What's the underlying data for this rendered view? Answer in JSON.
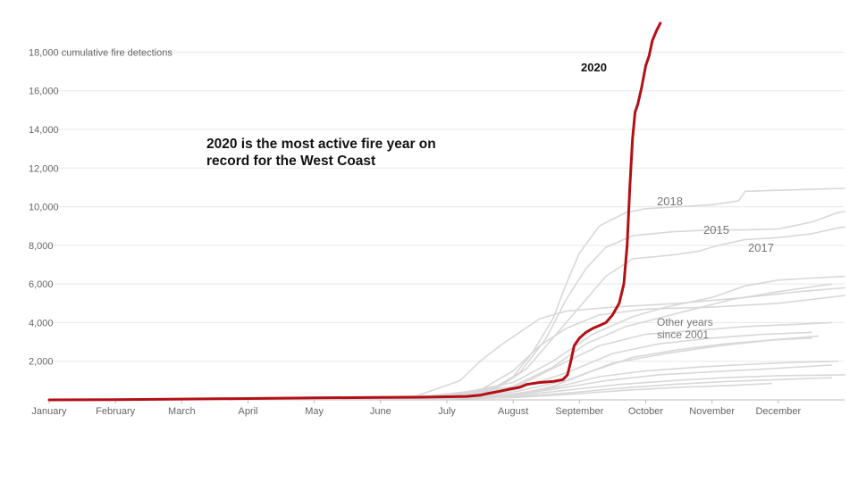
{
  "chart_data": {
    "type": "line",
    "xlim": [
      0,
      12
    ],
    "ylim": [
      0,
      19500
    ],
    "x_tick_labels": [
      "January",
      "February",
      "March",
      "April",
      "May",
      "June",
      "July",
      "August",
      "September",
      "October",
      "November",
      "December"
    ],
    "y_ticks": [
      2000,
      4000,
      6000,
      8000,
      10000,
      12000,
      14000,
      16000,
      18000
    ],
    "y_tick_labels": [
      "2,000",
      "4,000",
      "6,000",
      "8,000",
      "10,000",
      "12,000",
      "14,000",
      "16,000",
      "18,000 cumulative fire detections"
    ],
    "headline": "2020 is the most active fire year on record for the West Coast",
    "headline_lines": [
      "2020 is the most active fire year on",
      "record for the West Coast"
    ],
    "grid": true,
    "highlight_color": "#b40f15",
    "other_color": "#d8d8d8",
    "series": [
      {
        "name": "2020",
        "highlight": true,
        "points": [
          [
            0,
            0
          ],
          [
            1,
            10
          ],
          [
            2,
            40
          ],
          [
            3,
            70
          ],
          [
            4,
            100
          ],
          [
            5,
            130
          ],
          [
            5.6,
            140
          ],
          [
            6,
            160
          ],
          [
            6.3,
            180
          ],
          [
            6.5,
            240
          ],
          [
            6.6,
            320
          ],
          [
            6.8,
            450
          ],
          [
            6.95,
            560
          ],
          [
            7.1,
            650
          ],
          [
            7.2,
            800
          ],
          [
            7.4,
            900
          ],
          [
            7.6,
            950
          ],
          [
            7.75,
            1050
          ],
          [
            7.82,
            1300
          ],
          [
            7.87,
            2000
          ],
          [
            7.92,
            2800
          ],
          [
            8.0,
            3200
          ],
          [
            8.1,
            3500
          ],
          [
            8.2,
            3700
          ],
          [
            8.3,
            3850
          ],
          [
            8.4,
            4000
          ],
          [
            8.5,
            4400
          ],
          [
            8.6,
            5000
          ],
          [
            8.67,
            6000
          ],
          [
            8.72,
            8000
          ],
          [
            8.76,
            11000
          ],
          [
            8.8,
            13500
          ],
          [
            8.84,
            14900
          ],
          [
            8.88,
            15300
          ],
          [
            8.94,
            16200
          ],
          [
            9.0,
            17300
          ],
          [
            9.05,
            17800
          ],
          [
            9.1,
            18600
          ],
          [
            9.16,
            19100
          ],
          [
            9.22,
            19500
          ]
        ]
      },
      {
        "name": "2018",
        "points": [
          [
            0,
            0
          ],
          [
            5,
            120
          ],
          [
            6,
            250
          ],
          [
            6.7,
            600
          ],
          [
            7,
            1200
          ],
          [
            7.3,
            2500
          ],
          [
            7.6,
            4200
          ],
          [
            7.8,
            6000
          ],
          [
            8.0,
            7600
          ],
          [
            8.3,
            9000
          ],
          [
            8.7,
            9700
          ],
          [
            9.0,
            9900
          ],
          [
            9.5,
            10000
          ],
          [
            10.0,
            10100
          ],
          [
            10.4,
            10300
          ],
          [
            10.5,
            10800
          ],
          [
            11,
            10850
          ],
          [
            11.5,
            10900
          ],
          [
            12,
            10950
          ]
        ]
      },
      {
        "name": "2015",
        "points": [
          [
            0,
            0
          ],
          [
            5,
            80
          ],
          [
            6,
            200
          ],
          [
            6.7,
            500
          ],
          [
            7.1,
            1400
          ],
          [
            7.5,
            3200
          ],
          [
            7.8,
            5200
          ],
          [
            8.1,
            6800
          ],
          [
            8.4,
            7900
          ],
          [
            8.8,
            8500
          ],
          [
            9.4,
            8700
          ],
          [
            10,
            8800
          ],
          [
            10.5,
            8800
          ],
          [
            11,
            8850
          ],
          [
            11.5,
            9200
          ],
          [
            11.9,
            9700
          ],
          [
            12,
            9750
          ]
        ]
      },
      {
        "name": "2017",
        "points": [
          [
            0,
            0
          ],
          [
            5,
            100
          ],
          [
            6,
            250
          ],
          [
            6.8,
            700
          ],
          [
            7.2,
            1600
          ],
          [
            7.6,
            3200
          ],
          [
            8.0,
            4800
          ],
          [
            8.4,
            6400
          ],
          [
            8.8,
            7300
          ],
          [
            9.4,
            7500
          ],
          [
            9.8,
            7700
          ],
          [
            10.1,
            8000
          ],
          [
            10.5,
            8300
          ],
          [
            11,
            8400
          ],
          [
            11.5,
            8600
          ],
          [
            11.9,
            8900
          ],
          [
            12,
            8950
          ]
        ]
      },
      {
        "name": "",
        "points": [
          [
            0,
            0
          ],
          [
            5.5,
            120
          ],
          [
            6.5,
            500
          ],
          [
            7.0,
            1500
          ],
          [
            7.4,
            2800
          ],
          [
            7.8,
            3700
          ],
          [
            8.3,
            4400
          ],
          [
            9.0,
            4700
          ],
          [
            10,
            4800
          ],
          [
            11,
            5000
          ],
          [
            11.5,
            5200
          ],
          [
            12,
            5400
          ]
        ]
      },
      {
        "name": "",
        "points": [
          [
            0,
            0
          ],
          [
            5.5,
            150
          ],
          [
            6.2,
            1000
          ],
          [
            6.5,
            2000
          ],
          [
            6.8,
            2800
          ],
          [
            7.1,
            3500
          ],
          [
            7.4,
            4200
          ],
          [
            7.8,
            4600
          ],
          [
            8.5,
            4800
          ],
          [
            9.5,
            5000
          ],
          [
            10.5,
            5300
          ],
          [
            11.3,
            5600
          ],
          [
            12,
            5800
          ]
        ]
      },
      {
        "name": "",
        "points": [
          [
            0,
            0
          ],
          [
            6,
            200
          ],
          [
            7,
            900
          ],
          [
            7.6,
            2000
          ],
          [
            8.2,
            3400
          ],
          [
            8.8,
            4300
          ],
          [
            9.3,
            4800
          ],
          [
            10,
            5300
          ],
          [
            10.5,
            5900
          ],
          [
            11,
            6200
          ],
          [
            12,
            6400
          ]
        ]
      },
      {
        "name": "",
        "points": [
          [
            0,
            0
          ],
          [
            6,
            180
          ],
          [
            7,
            700
          ],
          [
            7.6,
            1700
          ],
          [
            8.1,
            2900
          ],
          [
            8.7,
            3800
          ],
          [
            9.5,
            4500
          ],
          [
            10.3,
            5200
          ],
          [
            11,
            5600
          ],
          [
            11.8,
            6000
          ]
        ]
      },
      {
        "name": "",
        "points": [
          [
            0,
            0
          ],
          [
            6,
            150
          ],
          [
            7,
            600
          ],
          [
            7.7,
            1800
          ],
          [
            8.3,
            2800
          ],
          [
            9,
            3400
          ],
          [
            9.8,
            3600
          ],
          [
            10.5,
            3800
          ],
          [
            11.2,
            3900
          ],
          [
            11.8,
            4000
          ]
        ]
      },
      {
        "name": "",
        "points": [
          [
            0,
            0
          ],
          [
            6,
            100
          ],
          [
            7,
            500
          ],
          [
            7.8,
            1400
          ],
          [
            8.5,
            2400
          ],
          [
            9.2,
            2900
          ],
          [
            10,
            3200
          ],
          [
            10.8,
            3400
          ],
          [
            11.5,
            3500
          ]
        ]
      },
      {
        "name": "",
        "points": [
          [
            0,
            0
          ],
          [
            6,
            100
          ],
          [
            7,
            400
          ],
          [
            7.8,
            1000
          ],
          [
            8.5,
            1900
          ],
          [
            9.3,
            2400
          ],
          [
            10.1,
            2800
          ],
          [
            10.9,
            3100
          ],
          [
            11.6,
            3300
          ]
        ]
      },
      {
        "name": "",
        "points": [
          [
            0,
            0
          ],
          [
            6,
            80
          ],
          [
            7,
            300
          ],
          [
            7.7,
            700
          ],
          [
            8.3,
            1200
          ],
          [
            9,
            1500
          ],
          [
            9.8,
            1700
          ],
          [
            10.6,
            1850
          ],
          [
            11.3,
            1950
          ],
          [
            11.9,
            2000
          ]
        ]
      },
      {
        "name": "",
        "points": [
          [
            0,
            0
          ],
          [
            6,
            80
          ],
          [
            7,
            250
          ],
          [
            7.7,
            600
          ],
          [
            8.4,
            1000
          ],
          [
            9.2,
            1300
          ],
          [
            10,
            1450
          ],
          [
            10.8,
            1600
          ],
          [
            11.8,
            1800
          ]
        ]
      },
      {
        "name": "",
        "points": [
          [
            0,
            0
          ],
          [
            6,
            60
          ],
          [
            7,
            200
          ],
          [
            7.8,
            500
          ],
          [
            8.6,
            800
          ],
          [
            9.4,
            1000
          ],
          [
            10.2,
            1150
          ],
          [
            11,
            1250
          ],
          [
            12,
            1300
          ]
        ]
      },
      {
        "name": "",
        "points": [
          [
            0,
            0
          ],
          [
            6,
            50
          ],
          [
            7,
            150
          ],
          [
            7.8,
            350
          ],
          [
            8.6,
            600
          ],
          [
            9.4,
            800
          ],
          [
            10.2,
            950
          ],
          [
            11,
            1050
          ],
          [
            11.8,
            1150
          ]
        ]
      },
      {
        "name": "",
        "points": [
          [
            0,
            0
          ],
          [
            6,
            40
          ],
          [
            7,
            120
          ],
          [
            7.9,
            300
          ],
          [
            8.7,
            500
          ],
          [
            9.5,
            650
          ],
          [
            10.3,
            750
          ],
          [
            10.9,
            850
          ]
        ]
      },
      {
        "name": "",
        "points": [
          [
            0,
            0
          ],
          [
            6,
            60
          ],
          [
            7,
            250
          ],
          [
            7.6,
            700
          ],
          [
            8.2,
            1500
          ],
          [
            8.8,
            2200
          ],
          [
            9.5,
            2600
          ],
          [
            10.2,
            2900
          ],
          [
            10.9,
            3100
          ],
          [
            11.5,
            3200
          ]
        ]
      }
    ],
    "annotations": [
      {
        "text": "2020",
        "series": "2020"
      },
      {
        "text": "2018",
        "series": "2018"
      },
      {
        "text": "2015",
        "series": "2015"
      },
      {
        "text": "2017",
        "series": "2017"
      },
      {
        "text": "Other years since 2001",
        "lines": [
          "Other years",
          "since 2001"
        ]
      }
    ]
  }
}
